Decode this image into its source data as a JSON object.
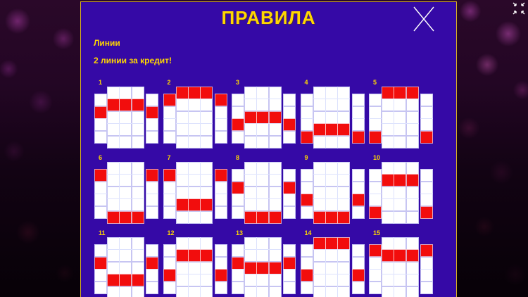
{
  "header": {
    "title": "ПРАВИЛА",
    "close_icon": "close-x",
    "fullscreen_icon": "exit-fullscreen"
  },
  "rules": {
    "section_label": "Линии",
    "subtitle": "2 линии за кредит!"
  },
  "colors": {
    "panel_bg": "#3509A6",
    "panel_border": "#D8B226",
    "accent_text": "#FFD700",
    "cell_white": "#FFFFFF",
    "cell_red": "#F20D0D",
    "background_dark": "#1A0419",
    "flower_magenta": "#A53CA0",
    "icon_white": "#FFFFFF"
  },
  "paylines": {
    "grid": {
      "columns": 5,
      "middle_column_rows": 5,
      "outer_column_rows": 4
    },
    "lines": [
      {
        "n": "1",
        "outer": 2,
        "middle": 2
      },
      {
        "n": "2",
        "outer": 1,
        "middle": 1
      },
      {
        "n": "3",
        "outer": 3,
        "middle": 3
      },
      {
        "n": "4",
        "outer": 4,
        "middle": 4
      },
      {
        "n": "5",
        "outer": 4,
        "middle": 1
      },
      {
        "n": "6",
        "outer": 1,
        "middle": 5
      },
      {
        "n": "7",
        "outer": 1,
        "middle": 4
      },
      {
        "n": "8",
        "outer": 2,
        "middle": 5
      },
      {
        "n": "9",
        "outer": 3,
        "middle": 5
      },
      {
        "n": "10",
        "outer": 4,
        "middle": 2
      },
      {
        "n": "11",
        "outer": 2,
        "middle": 4
      },
      {
        "n": "12",
        "outer": 3,
        "middle": 2
      },
      {
        "n": "13",
        "outer": 2,
        "middle": 3
      },
      {
        "n": "14",
        "outer": 3,
        "middle": 1
      },
      {
        "n": "15",
        "outer": 1,
        "middle": 2
      }
    ]
  }
}
